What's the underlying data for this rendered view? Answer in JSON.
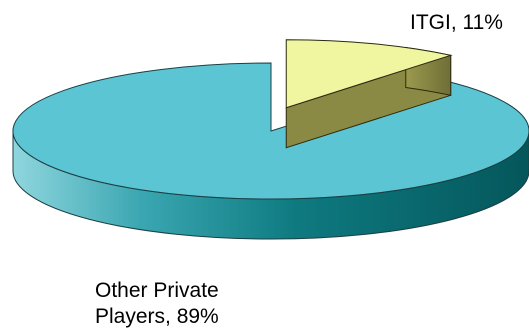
{
  "chart_data": {
    "type": "pie",
    "title": "",
    "slices": [
      {
        "category": "ITGI",
        "value": 11,
        "label_lines": [
          "ITGI, 11%"
        ],
        "color": "#F0F5A0",
        "side_color": "#8B8A45",
        "exploded": true
      },
      {
        "category": "Other Private Players",
        "value": 89,
        "label_lines": [
          "Other Private",
          "Players, 89%"
        ],
        "color": "#5BC5D3",
        "side_color_light": "#7CCFD9",
        "side_color_dark": "#0A6E74",
        "exploded": false
      }
    ],
    "three_d": true,
    "legend": "none"
  }
}
